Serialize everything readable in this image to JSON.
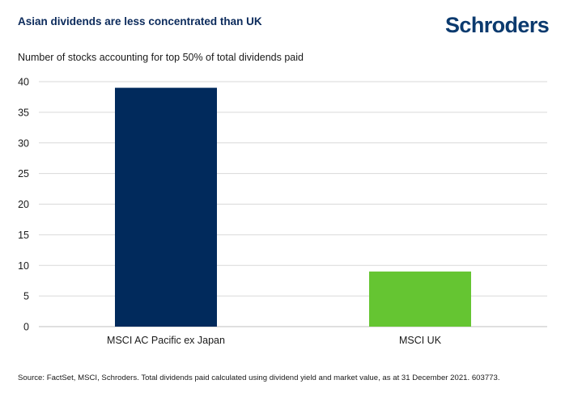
{
  "header": {
    "title": "Asian dividends are less concentrated than UK",
    "logo_text": "Schroders"
  },
  "chart_data": {
    "type": "bar",
    "title": "Asian dividends are less concentrated than UK",
    "subtitle": "Number of stocks accounting for top 50% of total dividends paid",
    "categories": [
      "MSCI AC Pacific ex Japan",
      "MSCI UK"
    ],
    "values": [
      39,
      9
    ],
    "colors": [
      "#012a5c",
      "#65c532"
    ],
    "xlabel": "",
    "ylabel": "",
    "ylim": [
      0,
      40
    ],
    "yticks": [
      0,
      5,
      10,
      15,
      20,
      25,
      30,
      35,
      40
    ],
    "grid": true,
    "legend": "none"
  },
  "footer": {
    "source": "Source: FactSet, MSCI, Schroders. Total dividends paid calculated using dividend yield and market value, as at 31 December 2021. 603773."
  },
  "colors": {
    "title": "#0b2a5b",
    "logo": "#0b3a6e",
    "grid": "#d9d9d9",
    "axis": "#bfbfbf"
  }
}
